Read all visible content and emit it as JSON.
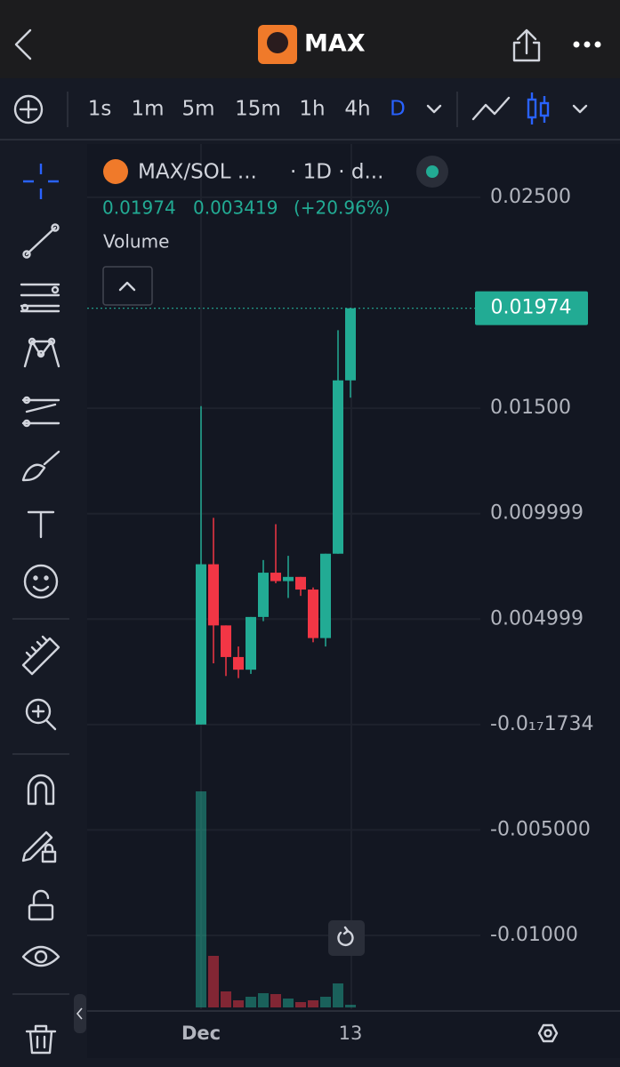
{
  "header": {
    "title": "MAX"
  },
  "timeframes": [
    "1s",
    "1m",
    "5m",
    "15m",
    "1h",
    "4h",
    "D"
  ],
  "legend": {
    "symbol": "MAX/SOL ...",
    "interval": "· 1D · d...",
    "close": "0.01974",
    "change": "0.003419",
    "change_pct": "(+20.96%)",
    "volume": "Volume"
  },
  "chart_data": {
    "type": "candlestick",
    "x": [
      "Dec",
      null,
      null,
      null,
      null,
      null,
      null,
      null,
      null,
      null,
      null,
      null,
      "13"
    ],
    "open": [
      0.0,
      0.0076,
      0.0047,
      0.0032,
      0.0026,
      0.0051,
      0.0072,
      0.0068,
      0.007,
      0.0064,
      0.0041,
      0.0081,
      0.01632
    ],
    "high": [
      0.0151,
      0.0098,
      0.0047,
      0.0037,
      0.0051,
      0.0078,
      0.0095,
      0.008,
      0.007,
      0.0065,
      0.0081,
      0.0187,
      0.01974
    ],
    "low": [
      0.0,
      0.0029,
      0.0023,
      0.0022,
      0.0024,
      0.0049,
      0.0067,
      0.006,
      0.0061,
      0.0039,
      0.0037,
      0.0081,
      0.0155
    ],
    "close": [
      0.0076,
      0.0047,
      0.0032,
      0.0026,
      0.0051,
      0.0072,
      0.0068,
      0.007,
      0.0064,
      0.0041,
      0.0081,
      0.01632,
      0.01974
    ],
    "volume": [
      243,
      58,
      18,
      8,
      12,
      16,
      15,
      10,
      6,
      8,
      12,
      27,
      3
    ],
    "up_color": "#22ab94",
    "down_color": "#f23645",
    "ylim": [
      -0.0135,
      0.0274
    ],
    "yticks": [
      {
        "value": 0.025,
        "label": "0.02500"
      },
      {
        "value": 0.015,
        "label": "0.01500"
      },
      0.009999,
      0.004999,
      {
        "value": -1.734e-18,
        "label": "-0.0₁₇1734"
      },
      {
        "value": -0.005,
        "label": "-0.005000"
      },
      {
        "value": -0.01,
        "label": "-0.01000"
      }
    ],
    "grid": true
  }
}
